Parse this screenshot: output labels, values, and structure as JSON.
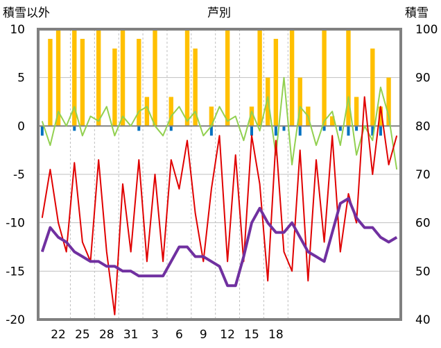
{
  "chart_data": {
    "type": "line",
    "title": "芦別",
    "ylabel_left": "積雪以外",
    "ylabel_right": "積雪",
    "ylim_left": [
      -20,
      10
    ],
    "ylim_right": [
      40,
      100
    ],
    "yticks_left": [
      "10",
      "5",
      "0",
      "-5",
      "-10",
      "-15",
      "-20"
    ],
    "yticks_right": [
      "100",
      "90",
      "80",
      "70",
      "60",
      "50",
      "40"
    ],
    "x_count": 45,
    "xticks": [
      {
        "i": 2,
        "label": "22"
      },
      {
        "i": 5,
        "label": "25"
      },
      {
        "i": 8,
        "label": "28"
      },
      {
        "i": 11,
        "label": "31"
      },
      {
        "i": 14,
        "label": "3"
      },
      {
        "i": 17,
        "label": "6"
      },
      {
        "i": 20,
        "label": "9"
      },
      {
        "i": 23,
        "label": "12"
      },
      {
        "i": 26,
        "label": "15"
      },
      {
        "i": 29,
        "label": "18"
      }
    ],
    "grid": true,
    "colors": {
      "temperature": "#e00000",
      "wind": "#92d050",
      "sunshine": "#ffc000",
      "precip": "#0070c0",
      "snow_depth": "#7030a0",
      "frame": "#808080"
    },
    "series": [
      {
        "key": "temperature",
        "axis": "left",
        "values": [
          -9.5,
          -4.5,
          -10,
          -13,
          -3.8,
          -12,
          -14,
          -3.5,
          -13,
          -19.5,
          -6,
          -13,
          -3.5,
          -14,
          -5,
          -14,
          -3.5,
          -6.5,
          -1.5,
          -9,
          -14,
          -6.5,
          -1,
          -14,
          -3,
          -14,
          -1,
          -6,
          -16,
          -1.5,
          -13,
          -15,
          -2.5,
          -16,
          -3.5,
          -12,
          -1,
          -13,
          -7,
          -10,
          3,
          -5,
          2,
          -4,
          -1
        ]
      },
      {
        "key": "wind",
        "axis": "left",
        "values": [
          0.5,
          -2,
          1.5,
          0,
          2,
          -1,
          1,
          0.5,
          2,
          -1,
          1,
          0,
          1.5,
          2,
          0,
          -1,
          1,
          2,
          0.5,
          1.5,
          -1,
          0,
          2,
          0.5,
          1,
          -1.5,
          1.5,
          -0.5,
          3,
          -3,
          5,
          -4,
          2,
          1,
          -2,
          0.5,
          1.5,
          -2,
          3,
          -3,
          0,
          -1.5,
          4,
          1,
          -4.5
        ]
      },
      {
        "key": "sunshine",
        "axis": "left",
        "values": [
          0,
          9,
          10,
          0,
          10,
          9,
          0,
          10,
          0,
          8,
          10,
          0,
          9,
          3,
          10,
          0,
          3,
          0,
          10,
          8,
          0,
          2,
          0,
          10,
          0,
          0,
          2,
          10,
          5,
          9,
          0,
          10,
          5,
          2,
          0,
          10,
          1,
          0,
          10,
          3,
          0,
          8,
          2,
          5,
          0
        ]
      },
      {
        "key": "precip",
        "axis": "left",
        "values": [
          -1,
          0,
          0,
          0,
          -0.5,
          0,
          0,
          0,
          0,
          0,
          0,
          0,
          -0.5,
          0,
          0,
          0,
          -0.5,
          0,
          0,
          0,
          0,
          -1,
          0,
          0,
          0,
          0,
          -1,
          0,
          0,
          -1,
          -0.5,
          0,
          -1,
          0,
          0,
          -0.5,
          0,
          -0.5,
          -1,
          -0.5,
          0,
          -1,
          -1,
          0,
          0
        ]
      },
      {
        "key": "snow_depth",
        "axis": "right",
        "values": [
          54,
          59,
          57,
          56,
          54,
          53,
          52,
          52,
          51,
          51,
          50,
          50,
          49,
          49,
          49,
          49,
          52,
          55,
          55,
          53,
          53,
          52,
          51,
          47,
          47,
          53,
          60,
          63,
          60,
          58,
          58,
          60,
          57,
          54,
          53,
          52,
          58,
          64,
          65,
          61,
          59,
          59,
          57,
          56,
          57
        ]
      }
    ]
  }
}
